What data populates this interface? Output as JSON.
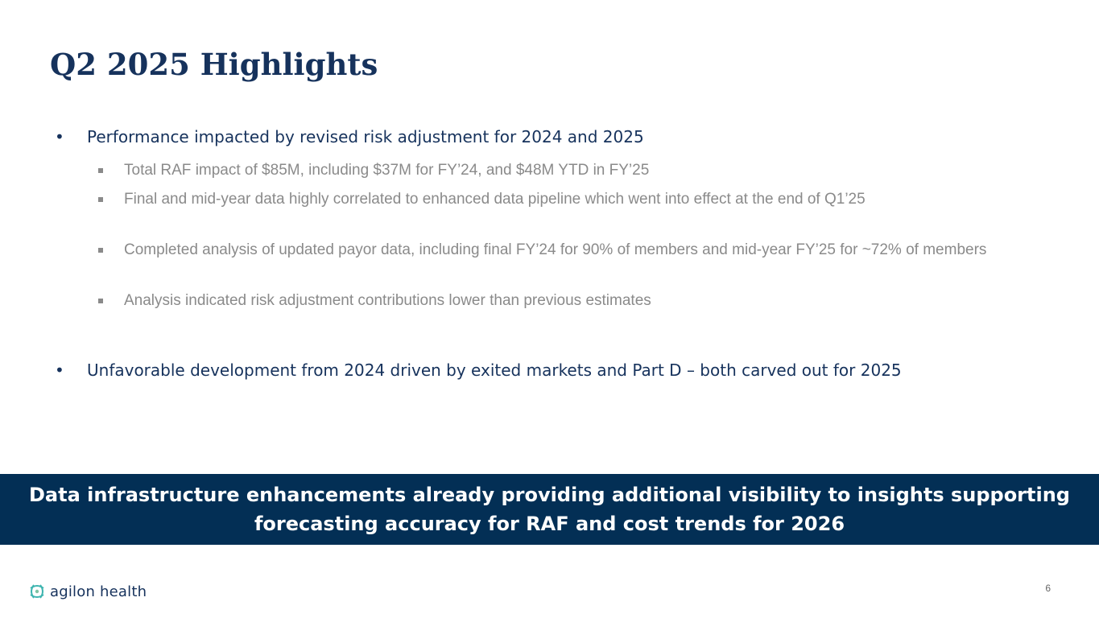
{
  "slide": {
    "title": "Q2 2025 Highlights",
    "bullets": [
      {
        "text": "Performance impacted by revised risk adjustment for 2024 and 2025",
        "sub": [
          "Total RAF impact of $85M, including $37M for FY’24, and $48M YTD in FY’25",
          "Final and mid-year data highly correlated to enhanced data pipeline which went into effect at the end of Q1’25",
          "Completed analysis of updated payor data, including final FY’24 for 90% of members and mid-year FY’25 for ~72% of members",
          "Analysis indicated risk adjustment contributions lower than previous estimates"
        ]
      },
      {
        "text": "Unfavorable development from 2024 driven by exited markets and Part D – both carved out for 2025"
      }
    ],
    "banner": "Data infrastructure enhancements already providing additional visibility to insights supporting forecasting accuracy for RAF and cost trends for 2026",
    "logo_text": "agilon health",
    "page_number": "6"
  },
  "colors": {
    "title": "#16325c",
    "subtext": "#8a8a8a",
    "banner_bg": "#032f55",
    "logo_teal": "#3fb5b0"
  }
}
